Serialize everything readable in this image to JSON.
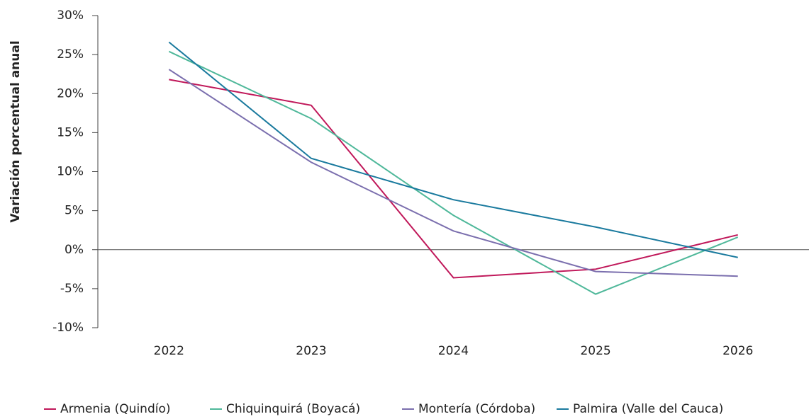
{
  "chart_data": {
    "type": "line",
    "y_label": "Variación porcentual anual",
    "categories": [
      "2022",
      "2023",
      "2024",
      "2025",
      "2026"
    ],
    "series": [
      {
        "name": "Armenia (Quindío)",
        "color": "#c0185a",
        "values": [
          21.8,
          18.5,
          -3.6,
          -2.5,
          1.9
        ]
      },
      {
        "name": "Chiquinquirá (Boyacá)",
        "color": "#4fb89a",
        "values": [
          25.4,
          16.8,
          4.4,
          -5.7,
          1.6
        ]
      },
      {
        "name": "Montería (Córdoba)",
        "color": "#7b6fae",
        "values": [
          23.1,
          11.2,
          2.4,
          -2.8,
          -3.4
        ]
      },
      {
        "name": "Palmira (Valle del Cauca)",
        "color": "#1a7a9e",
        "values": [
          26.6,
          11.7,
          6.4,
          2.9,
          -1.0
        ]
      }
    ],
    "ylim": [
      -10,
      30
    ],
    "yticks": [
      {
        "value": -10,
        "label": "-10%"
      },
      {
        "value": -5,
        "label": "-5%"
      },
      {
        "value": 0,
        "label": "0%"
      },
      {
        "value": 5,
        "label": "5%"
      },
      {
        "value": 10,
        "label": "10%"
      },
      {
        "value": 15,
        "label": "15%"
      },
      {
        "value": 20,
        "label": "20%"
      },
      {
        "value": 25,
        "label": "25%"
      },
      {
        "value": 30,
        "label": "30%"
      }
    ],
    "legend": "bottom"
  }
}
